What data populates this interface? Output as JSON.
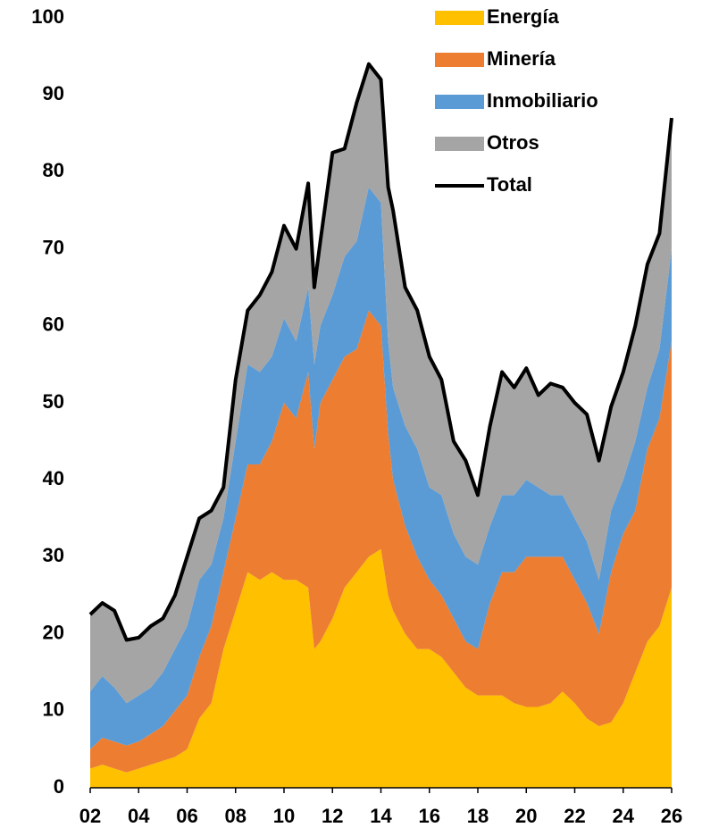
{
  "chart_data": {
    "type": "stacked_area",
    "x": [
      2002,
      2002.5,
      2003,
      2003.5,
      2004,
      2004.5,
      2005,
      2005.5,
      2006,
      2006.5,
      2007,
      2007.5,
      2008,
      2008.5,
      2009,
      2009.5,
      2010,
      2010.5,
      2011,
      2011.25,
      2011.5,
      2012,
      2012.5,
      2013,
      2013.5,
      2014,
      2014.3,
      2014.5,
      2015,
      2015.5,
      2016,
      2016.5,
      2017,
      2017.5,
      2018,
      2018.5,
      2019,
      2019.5,
      2020,
      2020.5,
      2021,
      2021.5,
      2022,
      2022.5,
      2023,
      2023.5,
      2024,
      2024.5,
      2025,
      2025.5,
      2026
    ],
    "series": [
      {
        "name": "Energía",
        "color": "#FFC000",
        "mark": "area",
        "values": [
          2.5,
          3,
          2.5,
          2,
          2.5,
          3,
          3.5,
          4,
          5,
          9,
          11,
          18,
          23,
          28,
          27,
          28,
          27,
          27,
          26,
          18,
          19,
          22,
          26,
          28,
          30,
          31,
          25,
          23,
          20,
          18,
          18,
          17,
          15,
          13,
          12,
          12,
          12,
          11,
          10.5,
          10.5,
          11,
          12.5,
          11,
          9,
          8,
          8.5,
          11,
          15,
          19,
          21,
          26
        ]
      },
      {
        "name": "Minería",
        "color": "#ED7D31",
        "mark": "area",
        "values": [
          2.5,
          3.5,
          3.5,
          3.5,
          3.5,
          4,
          4.5,
          6,
          7,
          8,
          10,
          10,
          12,
          14,
          15,
          17,
          23,
          21,
          28,
          26,
          31,
          31,
          30,
          29,
          32,
          29,
          21,
          17,
          14,
          12,
          9,
          8,
          7,
          6,
          6,
          12,
          16,
          17,
          19.5,
          19.5,
          19,
          17.5,
          16,
          15,
          12,
          19.5,
          22,
          21,
          25,
          27,
          32
        ]
      },
      {
        "name": "Inmobiliario",
        "color": "#5B9BD5",
        "mark": "area",
        "values": [
          7.5,
          8,
          7,
          5.5,
          6,
          6,
          7,
          8,
          9,
          10,
          8,
          7,
          10,
          13,
          12,
          11,
          11,
          10,
          11,
          11,
          10,
          11,
          13,
          14,
          16,
          16,
          12,
          12,
          13,
          14,
          12,
          13,
          11,
          11,
          11,
          10,
          10,
          10,
          10,
          9,
          8,
          8,
          8,
          8,
          7,
          8,
          7,
          9,
          8,
          9,
          12
        ]
      },
      {
        "name": "Otros",
        "color": "#A5A5A5",
        "mark": "area",
        "values": [
          10,
          9.5,
          10,
          8.2,
          7.5,
          8,
          7,
          7,
          9,
          8,
          7,
          4,
          8,
          7,
          10,
          11,
          12,
          12,
          13.5,
          10,
          11,
          18.5,
          14,
          18,
          16,
          16,
          20,
          23,
          18,
          18,
          17,
          15,
          12,
          12.5,
          9,
          13,
          16,
          14,
          14.5,
          12,
          14.5,
          14,
          15,
          16.5,
          15.5,
          13.5,
          14,
          15,
          16,
          15,
          17
        ]
      },
      {
        "name": "Total",
        "color": "#000000",
        "mark": "line",
        "values": [
          22.5,
          24,
          23,
          19.2,
          19.5,
          21,
          22,
          25,
          30,
          35,
          36,
          39,
          53,
          62,
          64,
          67,
          73,
          70,
          78.5,
          65,
          71,
          82.5,
          83,
          89,
          94,
          92,
          78,
          75,
          65,
          62,
          56,
          53,
          45,
          42.5,
          38,
          47,
          54,
          52,
          54.5,
          51,
          52.5,
          52,
          50,
          48.5,
          42.5,
          49.5,
          54,
          60,
          68,
          72,
          87
        ]
      }
    ],
    "xlim": [
      2002,
      2026
    ],
    "xticks": [
      {
        "value": 2002,
        "label": "02"
      },
      {
        "value": 2004,
        "label": "04"
      },
      {
        "value": 2006,
        "label": "06"
      },
      {
        "value": 2008,
        "label": "08"
      },
      {
        "value": 2010,
        "label": "10"
      },
      {
        "value": 2012,
        "label": "12"
      },
      {
        "value": 2014,
        "label": "14"
      },
      {
        "value": 2016,
        "label": "16"
      },
      {
        "value": 2018,
        "label": "18"
      },
      {
        "value": 2020,
        "label": "20"
      },
      {
        "value": 2022,
        "label": "22"
      },
      {
        "value": 2024,
        "label": "24"
      },
      {
        "value": 2026,
        "label": "26"
      }
    ],
    "ylim": [
      0,
      100
    ],
    "yticks": [
      0,
      10,
      20,
      30,
      40,
      50,
      60,
      70,
      80,
      90,
      100
    ],
    "grid": false,
    "legend": "top-right"
  }
}
